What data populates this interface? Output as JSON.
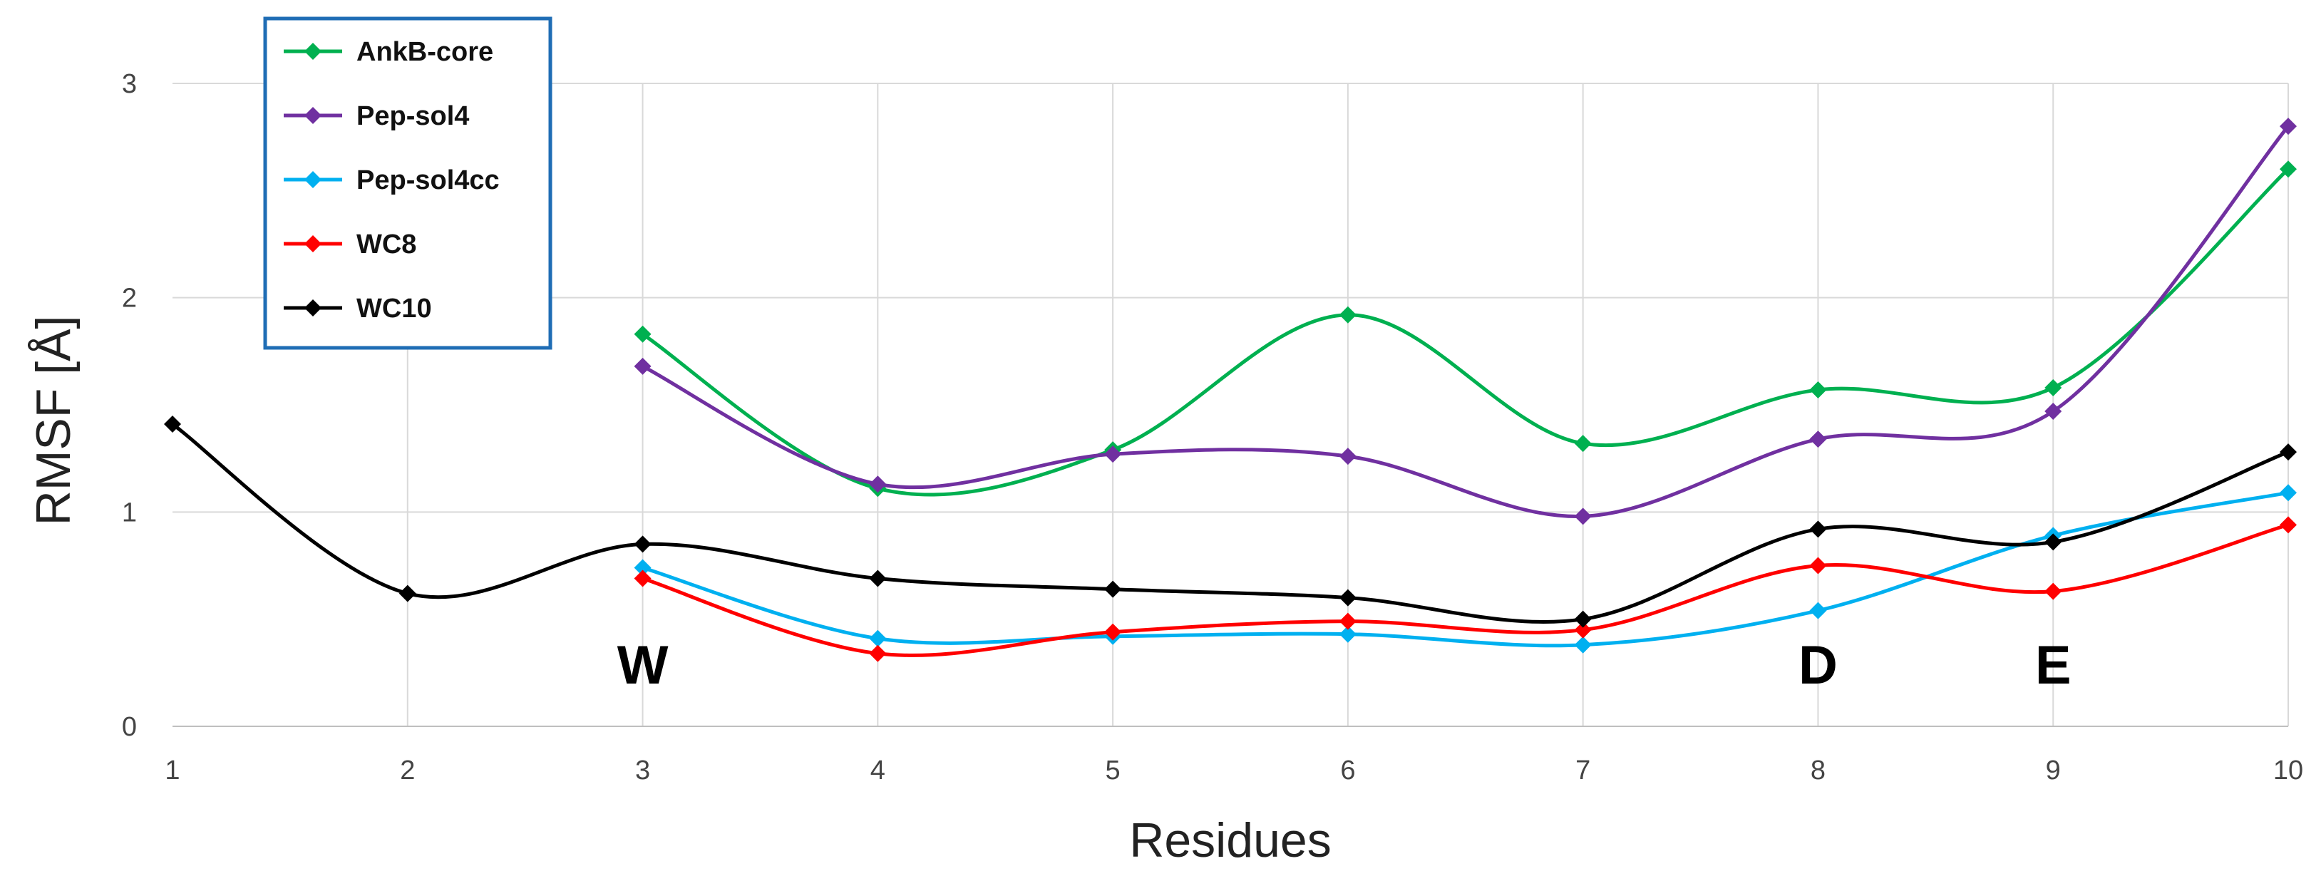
{
  "chart_data": {
    "type": "line",
    "title": "",
    "xlabel": "Residues",
    "ylabel": "RMSF [Å]",
    "x": [
      1,
      2,
      3,
      4,
      5,
      6,
      7,
      8,
      9,
      10
    ],
    "xlim": [
      1,
      10
    ],
    "ylim": [
      0,
      3
    ],
    "xticks": [
      "1",
      "2",
      "3",
      "4",
      "5",
      "6",
      "7",
      "8",
      "9",
      "10"
    ],
    "yticks": [
      "0",
      "1",
      "2",
      "3"
    ],
    "grid": true,
    "legend_position": "top-left",
    "series": [
      {
        "name": "AnkB-core",
        "color": "#00b050",
        "x": [
          3,
          4,
          5,
          6,
          7,
          8,
          9,
          10
        ],
        "values": [
          1.83,
          1.11,
          1.29,
          1.92,
          1.32,
          1.57,
          1.58,
          2.6
        ]
      },
      {
        "name": "Pep-sol4",
        "color": "#7030a0",
        "x": [
          3,
          4,
          5,
          6,
          7,
          8,
          9,
          10
        ],
        "values": [
          1.68,
          1.13,
          1.27,
          1.26,
          0.98,
          1.34,
          1.47,
          2.8
        ]
      },
      {
        "name": "Pep-sol4cc",
        "color": "#00b0f0",
        "x": [
          3,
          4,
          5,
          6,
          7,
          8,
          9,
          10
        ],
        "values": [
          0.74,
          0.41,
          0.42,
          0.43,
          0.38,
          0.54,
          0.89,
          1.09
        ]
      },
      {
        "name": "WC8",
        "color": "#ff0000",
        "x": [
          3,
          4,
          5,
          6,
          7,
          8,
          9,
          10
        ],
        "values": [
          0.69,
          0.34,
          0.44,
          0.49,
          0.45,
          0.75,
          0.63,
          0.94
        ]
      },
      {
        "name": "WC10",
        "color": "#000000",
        "x": [
          1,
          2,
          3,
          4,
          5,
          6,
          7,
          8,
          9,
          10
        ],
        "values": [
          1.41,
          0.62,
          0.85,
          0.69,
          0.64,
          0.6,
          0.5,
          0.92,
          0.86,
          1.28
        ]
      }
    ],
    "annotations": [
      {
        "text": "W",
        "x": 3,
        "y": 0.2
      },
      {
        "text": "D",
        "x": 8,
        "y": 0.2
      },
      {
        "text": "E",
        "x": 9,
        "y": 0.2
      }
    ]
  }
}
